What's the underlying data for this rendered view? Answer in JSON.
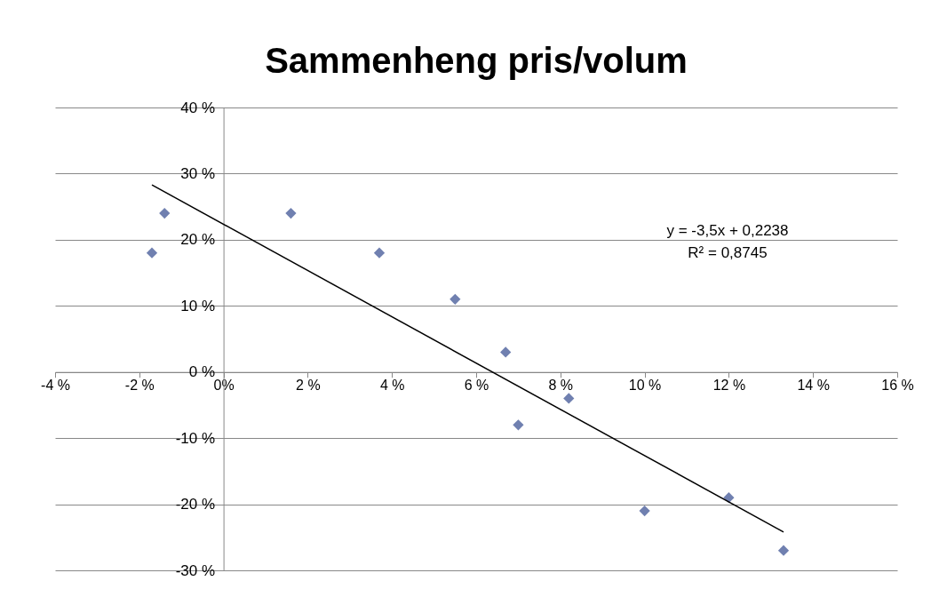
{
  "chart_data": {
    "type": "scatter",
    "title": "Sammenheng pris/volum",
    "xlim": [
      -4,
      16
    ],
    "xticks": [
      {
        "value": -4,
        "label": "-4 %"
      },
      {
        "value": -2,
        "label": "-2 %"
      },
      {
        "value": 0,
        "label": "0%"
      },
      {
        "value": 2,
        "label": "2 %"
      },
      {
        "value": 4,
        "label": "4 %"
      },
      {
        "value": 6,
        "label": "6 %"
      },
      {
        "value": 8,
        "label": "8 %"
      },
      {
        "value": 10,
        "label": "10 %"
      },
      {
        "value": 12,
        "label": "12 %"
      },
      {
        "value": 14,
        "label": "14 %"
      },
      {
        "value": 16,
        "label": "16 %"
      }
    ],
    "ylim": [
      -30,
      40
    ],
    "yticks": [
      {
        "value": -30,
        "label": "-30 %"
      },
      {
        "value": -20,
        "label": "-20 %"
      },
      {
        "value": -10,
        "label": "-10 %"
      },
      {
        "value": 0,
        "label": "0 %"
      },
      {
        "value": 10,
        "label": "10 %"
      },
      {
        "value": 20,
        "label": "20 %"
      },
      {
        "value": 30,
        "label": "30 %"
      },
      {
        "value": 40,
        "label": "40 %"
      }
    ],
    "grid": "y",
    "series": [
      {
        "color": "#7080b0",
        "marker": "diamond",
        "x": [
          -1.7,
          -1.4,
          1.6,
          3.7,
          5.5,
          6.7,
          7.0,
          8.2,
          10.0,
          12.0,
          13.3
        ],
        "values": [
          18,
          24,
          24,
          18,
          11,
          3,
          -8,
          -4,
          -21,
          -19,
          -27
        ]
      },
      {
        "type": "line",
        "color": "#000000",
        "marker": "none",
        "x": [
          -1.7,
          13.3
        ],
        "values": [
          28.3,
          -24.2
        ]
      }
    ],
    "annotations": [
      "y = -3,5x + 0,2238",
      "R² = 0,8745"
    ]
  }
}
